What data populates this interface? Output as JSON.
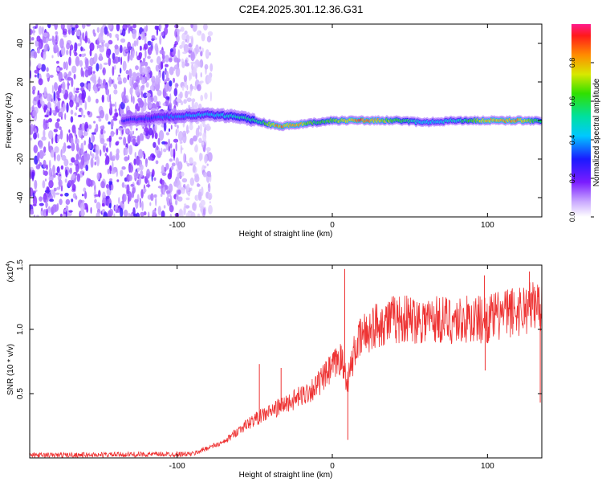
{
  "title": "C2E4.2025.301.12.36.G31",
  "chart_data": [
    {
      "type": "heatmap",
      "name": "spectrogram",
      "xlabel": "Height of straight line (km)",
      "ylabel": "Frequency (Hz)",
      "xlim": [
        -195,
        135
      ],
      "ylim": [
        -50,
        50
      ],
      "xticks": [
        -100,
        0,
        100
      ],
      "yticks": [
        -40,
        -20,
        0,
        20,
        40
      ],
      "colorbar": {
        "label": "Normalized spectral amplitude",
        "range": [
          0,
          1
        ],
        "ticks": [
          0.0,
          0.2,
          0.4,
          0.6,
          0.8
        ],
        "tick_labels": [
          "0.0",
          "0.2",
          "0.4",
          "0.6",
          "0.8"
        ]
      },
      "noise_region": {
        "x_from": -195,
        "x_to": -78,
        "amplitude": 0.12
      },
      "ridge": {
        "description": "Narrow-band signal near 0 Hz",
        "points": [
          {
            "x": -135,
            "freq": 0,
            "amp": 0.3
          },
          {
            "x": -105,
            "freq": 2,
            "amp": 0.4
          },
          {
            "x": -80,
            "freq": 3,
            "amp": 0.45
          },
          {
            "x": -60,
            "freq": 2,
            "amp": 0.55
          },
          {
            "x": -45,
            "freq": -1,
            "amp": 0.6
          },
          {
            "x": -35,
            "freq": -3,
            "amp": 0.9
          },
          {
            "x": -20,
            "freq": -2,
            "amp": 0.85
          },
          {
            "x": -10,
            "freq": -1,
            "amp": 0.6
          },
          {
            "x": 0,
            "freq": 0,
            "amp": 0.7
          },
          {
            "x": 20,
            "freq": 0,
            "amp": 0.95
          },
          {
            "x": 40,
            "freq": 0,
            "amp": 0.7
          },
          {
            "x": 60,
            "freq": -1,
            "amp": 0.45
          },
          {
            "x": 80,
            "freq": 0,
            "amp": 0.5
          },
          {
            "x": 100,
            "freq": 0,
            "amp": 0.85
          },
          {
            "x": 120,
            "freq": 0,
            "amp": 0.9
          },
          {
            "x": 135,
            "freq": 0,
            "amp": 0.6
          }
        ]
      }
    },
    {
      "type": "line",
      "name": "snr",
      "xlabel": "Height of straight line (km)",
      "ylabel": "SNR (10 * v/v)",
      "yscale_label": "(x10",
      "yscale_exp": "4",
      "xlim": [
        -195,
        135
      ],
      "ylim": [
        0,
        1.5
      ],
      "xticks": [
        -100,
        0,
        100
      ],
      "yticks": [
        0.5,
        1.0,
        1.5
      ],
      "ytick_labels": [
        "0.5",
        "1.0",
        "1.5"
      ],
      "series": [
        {
          "name": "SNR",
          "color": "#ee3333",
          "envelope_x": [
            -195,
            -90,
            -80,
            -70,
            -60,
            -50,
            -40,
            -30,
            -20,
            -10,
            0,
            5,
            10,
            15,
            20,
            30,
            40,
            60,
            80,
            100,
            120,
            135
          ],
          "envelope_y": [
            0.02,
            0.03,
            0.08,
            0.12,
            0.22,
            0.3,
            0.36,
            0.42,
            0.48,
            0.56,
            0.7,
            0.78,
            0.6,
            0.86,
            0.96,
            1.05,
            1.08,
            1.08,
            1.07,
            1.08,
            1.15,
            1.2
          ],
          "spikes": [
            {
              "x": -47,
              "y": 0.73
            },
            {
              "x": -33,
              "y": 0.7
            },
            {
              "x": 8,
              "y": 1.47
            },
            {
              "x": 10,
              "y": 0.14
            },
            {
              "x": 98,
              "y": 1.42
            },
            {
              "x": 98.5,
              "y": 0.68
            },
            {
              "x": 127,
              "y": 1.45
            },
            {
              "x": 134,
              "y": 0.43
            }
          ]
        }
      ]
    }
  ]
}
